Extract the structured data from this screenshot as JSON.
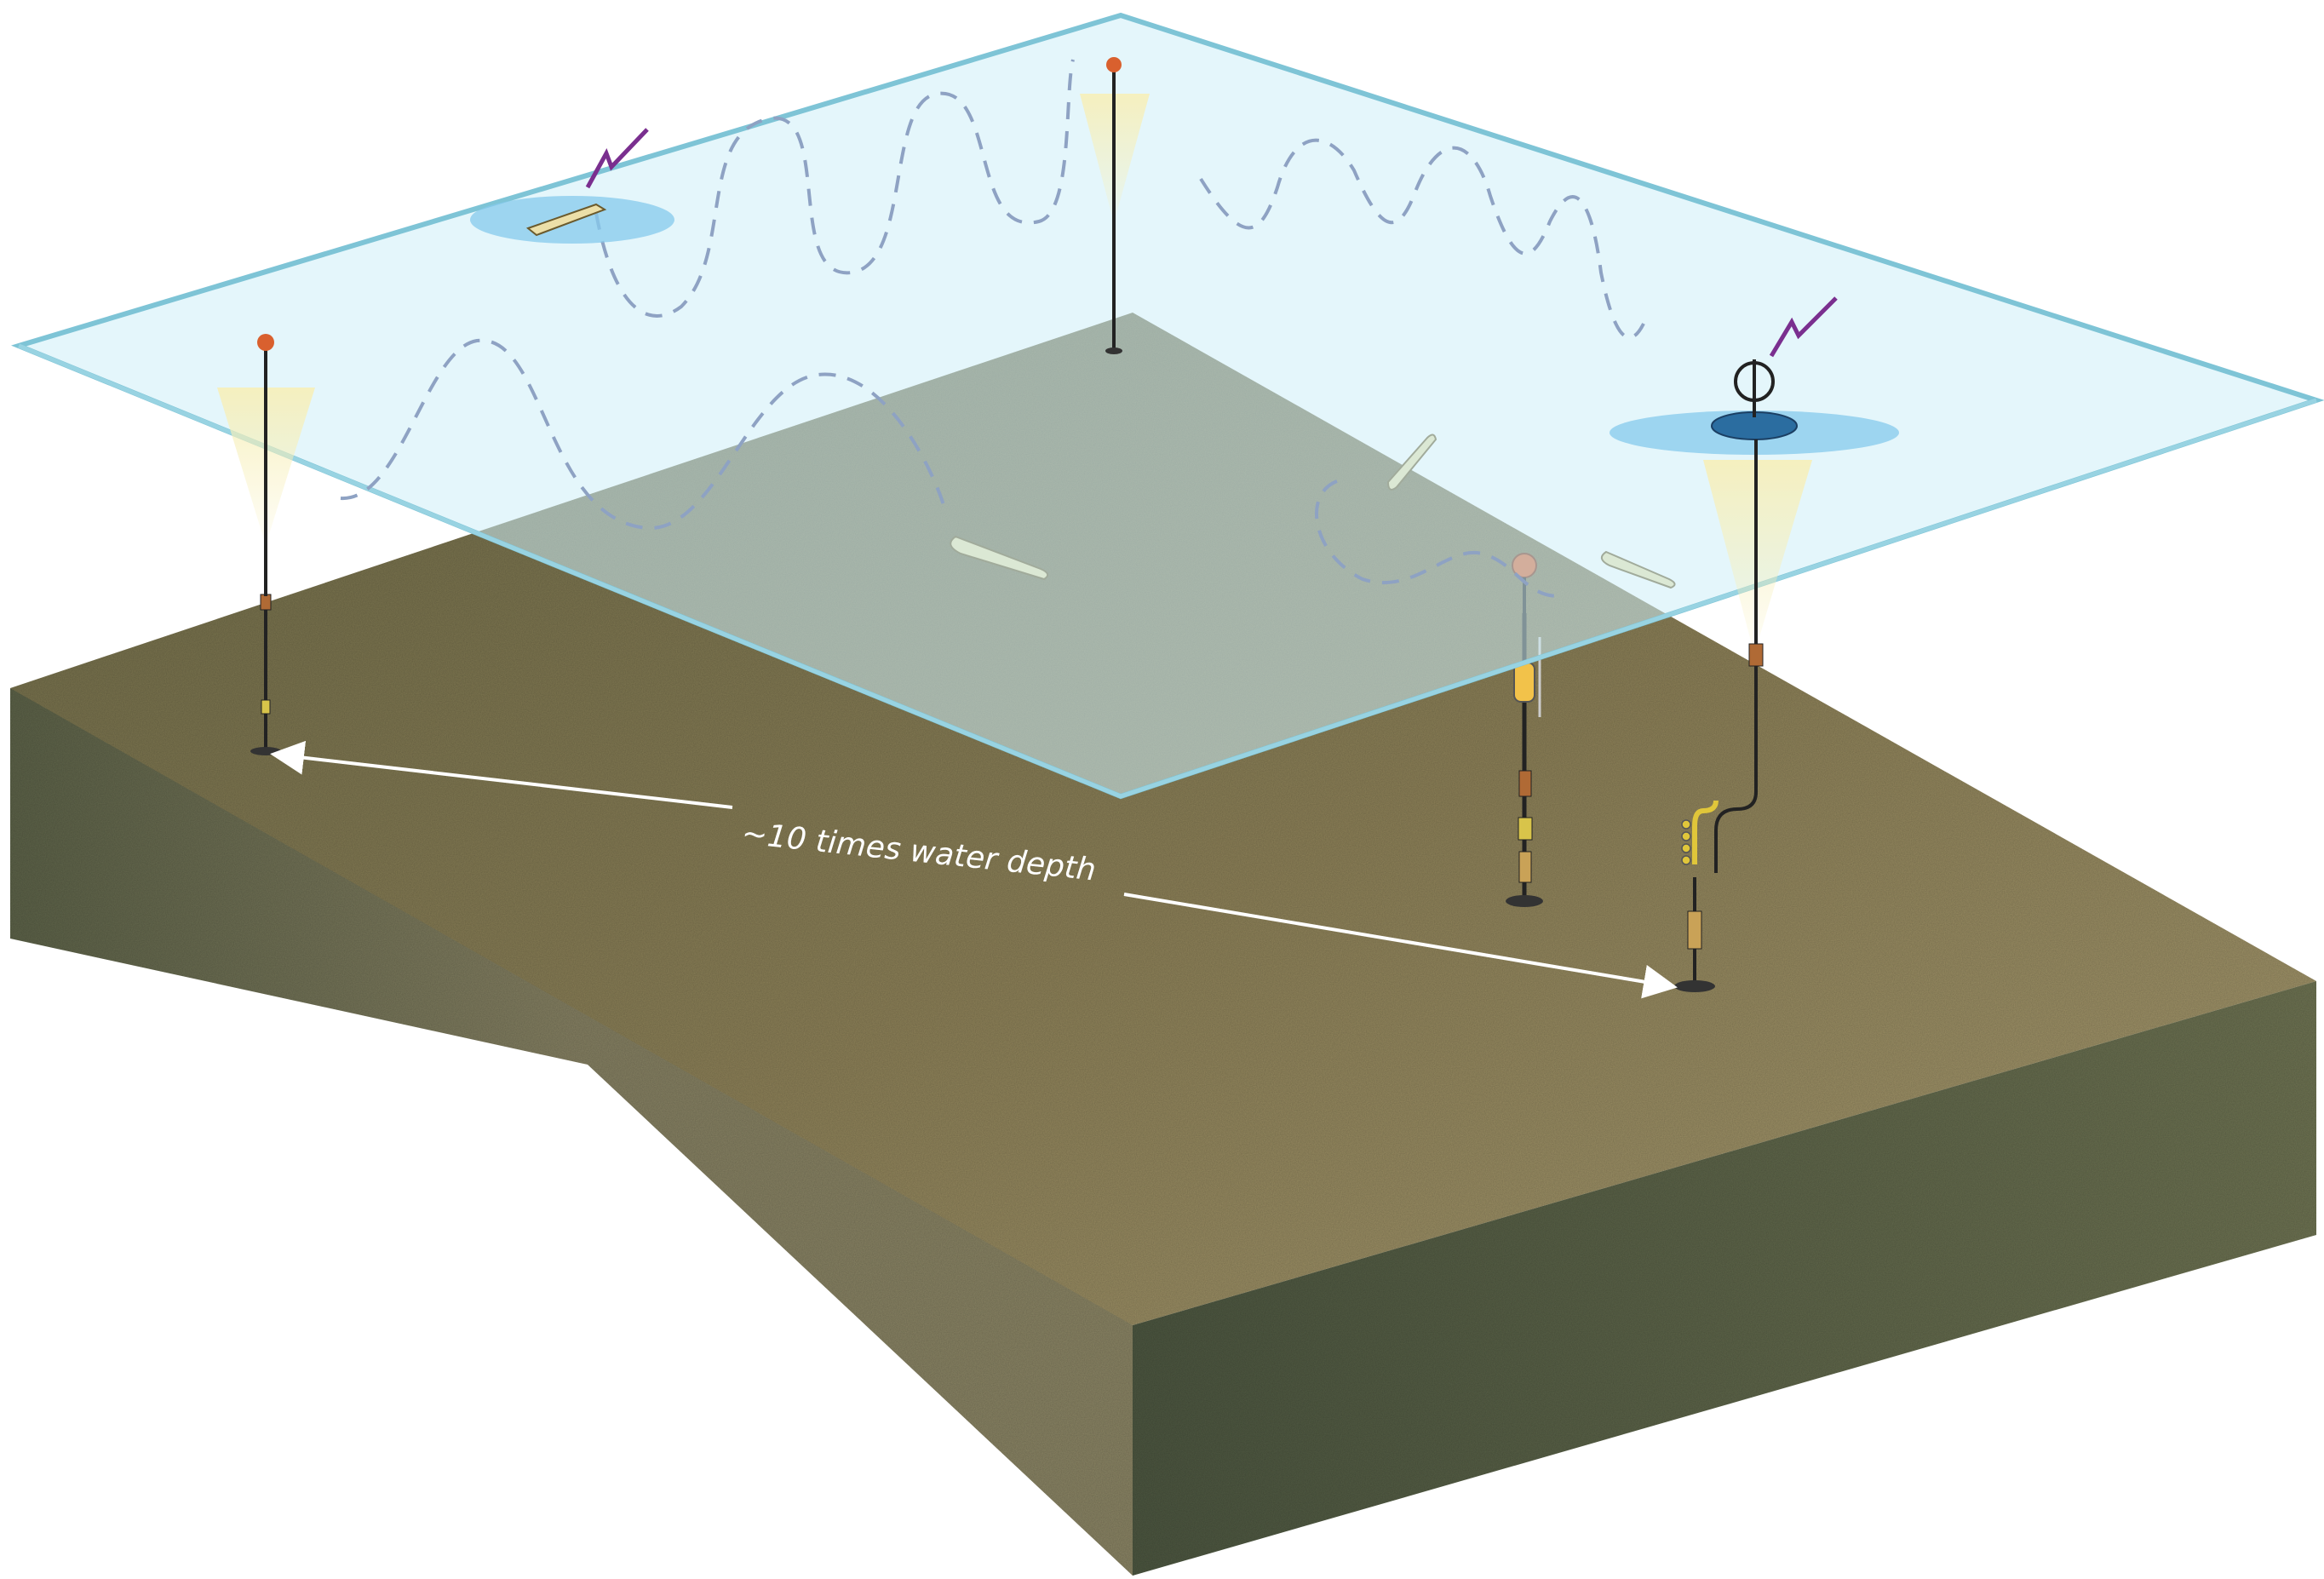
{
  "annotation": {
    "spacing_label": "~10 times water depth"
  },
  "colors": {
    "sediment_top": "#8c8060",
    "sediment_front": "#7f7a5c",
    "sediment_side": "#5e6448",
    "water_surface": "#bfe6f2",
    "surface_edge": "#7ec4d6",
    "glider_path": "#8aa0c0",
    "arrow": "#ffffff",
    "float_sphere": "#d9602e",
    "acoustic_beam": "#f4ecb0",
    "radio_signal": "#7a2f8f"
  },
  "icons": [
    "surface-buoy-icon",
    "glider-icon",
    "auv-icon",
    "profiler-mooring-icon",
    "adcp-beam-icon",
    "radio-signal-icon"
  ]
}
